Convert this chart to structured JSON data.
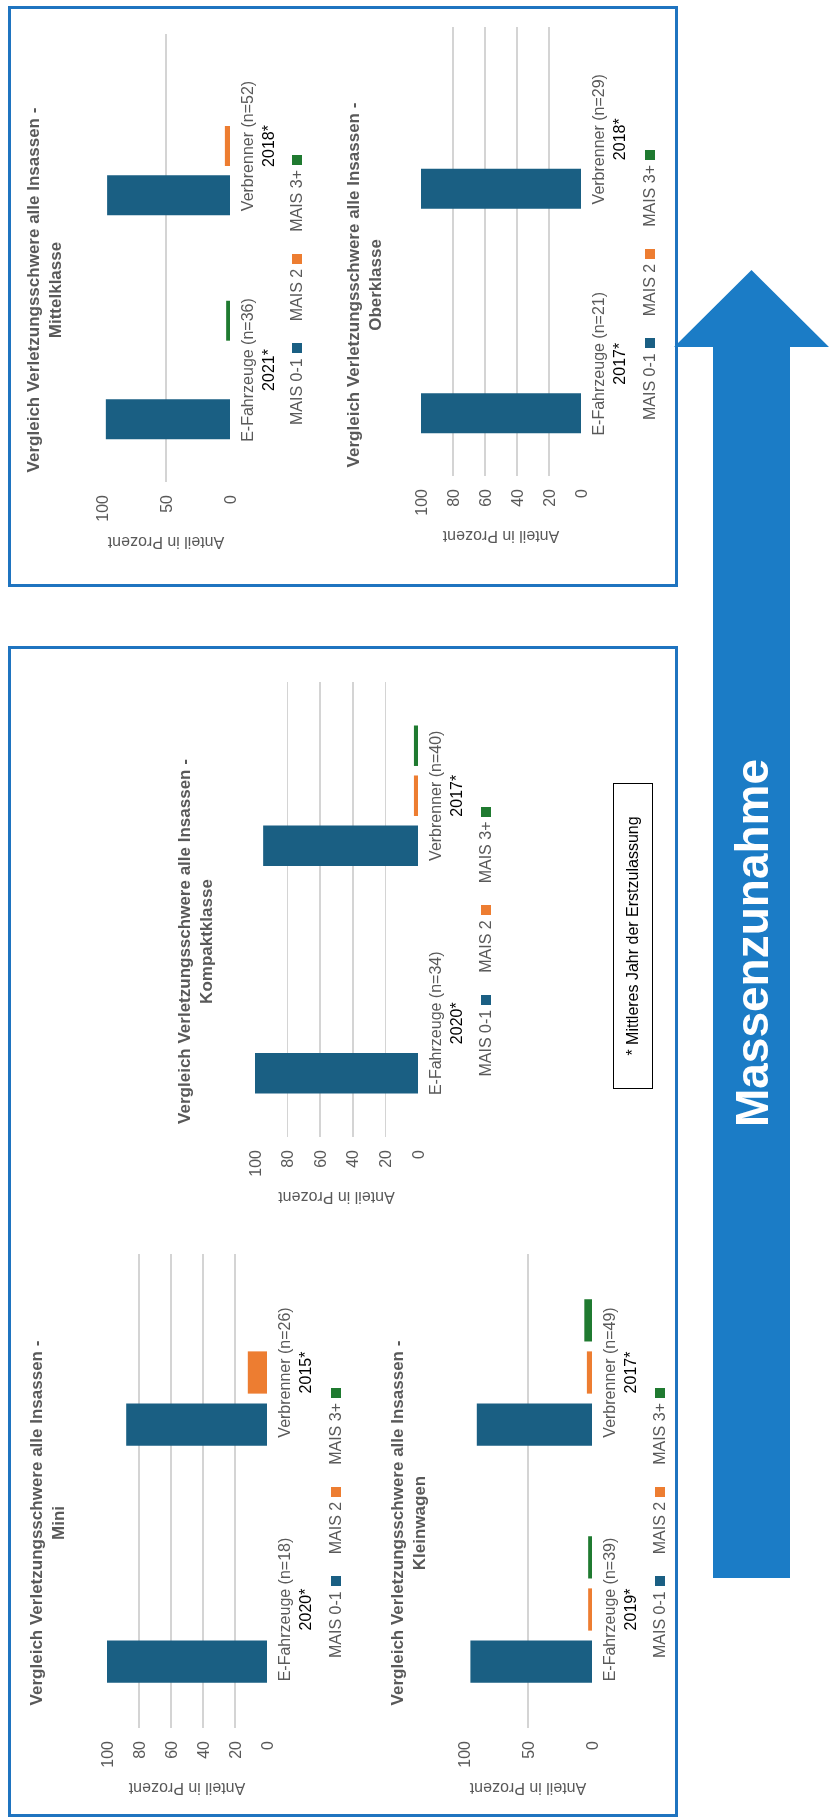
{
  "chart_data": [
    {
      "type": "bar",
      "orientation": "horizontal",
      "title": "Vergleich Verletzungsschwere alle Insassen -\nMini",
      "xlabel": "Anteil in Prozent",
      "categories": [
        "Verbrenner (n=26)\n2015*",
        "E-Fahrzeuge (n=18)\n2020*"
      ],
      "series": [
        {
          "name": "MAIS 0-1",
          "color": "#1a5f83",
          "values": [
            88,
            100
          ]
        },
        {
          "name": "MAIS 2",
          "color": "#ed7d31",
          "values": [
            12,
            0
          ]
        },
        {
          "name": "MAIS 3+",
          "color": "#1f7a30",
          "values": [
            0,
            0
          ]
        }
      ],
      "xlim": [
        100,
        0
      ],
      "xticks": [
        100,
        80,
        60,
        40,
        20,
        0
      ],
      "grid": "x",
      "legend": "right"
    },
    {
      "type": "bar",
      "orientation": "horizontal",
      "title": "Vergleich Verletzungsschwere alle Insassen -\nKleinwagen",
      "xlabel": "Anteil in Prozent",
      "categories": [
        "Verbrenner (n=49)\n2017*",
        "E-Fahrzeuge (n=39)\n2019*"
      ],
      "series": [
        {
          "name": "MAIS 0-1",
          "color": "#1a5f83",
          "values": [
            90,
            95
          ]
        },
        {
          "name": "MAIS 2",
          "color": "#ed7d31",
          "values": [
            4,
            3
          ]
        },
        {
          "name": "MAIS 3+",
          "color": "#1f7a30",
          "values": [
            6,
            3
          ]
        }
      ],
      "xlim": [
        100,
        0
      ],
      "xticks": [
        100,
        50,
        0
      ],
      "grid": "x",
      "legend": "right"
    },
    {
      "type": "bar",
      "orientation": "horizontal",
      "title": "Vergleich Verletzungsschwere alle Insassen -\nKompaktklasse",
      "xlabel": "Anteil in Prozent",
      "categories": [
        "Verbrenner (n=40)\n2017*",
        "E-Fahrzeuge (n=34)\n2020*"
      ],
      "series": [
        {
          "name": "MAIS 0-1",
          "color": "#1a5f83",
          "values": [
            95,
            100
          ]
        },
        {
          "name": "MAIS 2",
          "color": "#ed7d31",
          "values": [
            2.5,
            0
          ]
        },
        {
          "name": "MAIS 3+",
          "color": "#1f7a30",
          "values": [
            2.5,
            0
          ]
        }
      ],
      "xlim": [
        100,
        0
      ],
      "xticks": [
        100,
        80,
        60,
        40,
        20,
        0
      ],
      "grid": "x",
      "legend": "right",
      "annotations": [
        "* Mittleres Jahr der Erstzulassung"
      ]
    },
    {
      "type": "bar",
      "orientation": "horizontal",
      "title": "Vergleich Verletzungsschwere alle Insassen -\nMittelklasse",
      "xlabel": "Anteil in Prozent",
      "categories": [
        "Verbrenner (n=52)\n2018*",
        "E-Fahrzeuge (n=36)\n2021*"
      ],
      "series": [
        {
          "name": "MAIS 0-1",
          "color": "#1a5f83",
          "values": [
            96,
            97
          ]
        },
        {
          "name": "MAIS 2",
          "color": "#ed7d31",
          "values": [
            4,
            0
          ]
        },
        {
          "name": "MAIS 3+",
          "color": "#1f7a30",
          "values": [
            0,
            3
          ]
        }
      ],
      "xlim": [
        100,
        0
      ],
      "xticks": [
        100,
        50,
        0
      ],
      "grid": "x",
      "legend": "right"
    },
    {
      "type": "bar",
      "orientation": "horizontal",
      "title": "Vergleich Verletzungsschwere alle Insassen -\nOberklasse",
      "xlabel": "Anteil in Prozent",
      "categories": [
        "Verbrenner (n=29)\n2018*",
        "E-Fahrzeuge (n=21)\n2017*"
      ],
      "series": [
        {
          "name": "MAIS 0-1",
          "color": "#1a5f83",
          "values": [
            100,
            100
          ]
        },
        {
          "name": "MAIS 2",
          "color": "#ed7d31",
          "values": [
            0,
            0
          ]
        },
        {
          "name": "MAIS 3+",
          "color": "#1f7a30",
          "values": [
            0,
            0
          ]
        }
      ],
      "xlim": [
        100,
        0
      ],
      "xticks": [
        100,
        80,
        60,
        40,
        20,
        0
      ],
      "grid": "x",
      "legend": "right"
    },
    {
      "type": "other",
      "annotations": [
        "Massenzunahme"
      ]
    }
  ]
}
